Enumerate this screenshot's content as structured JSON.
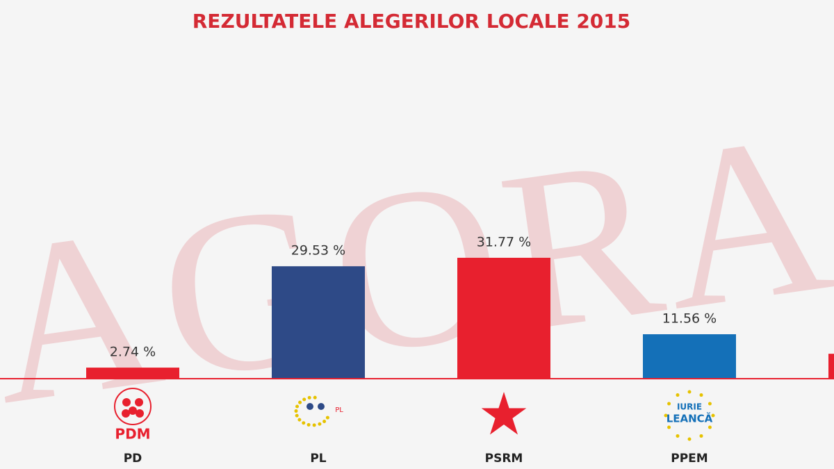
{
  "chart_data": {
    "type": "bar",
    "title": "REZULTATELE ALEGERILOR LOCALE 2015",
    "watermark": "AGORA",
    "categories": [
      "PD",
      "PL",
      "PSRM",
      "PPEM",
      null
    ],
    "values": [
      2.74,
      29.53,
      31.77,
      11.56,
      6.4
    ],
    "value_labels": [
      "2.74 %",
      "29.53 %",
      "31.77 %",
      "11.56 %",
      null
    ],
    "colors": [
      "#e8202e",
      "#2e4a87",
      "#e8202e",
      "#1470b8",
      "#e8202e"
    ],
    "logo_texts": [
      [
        "PDM"
      ],
      [
        "PL"
      ],
      [],
      [
        "IURIE",
        "LEANCĂ"
      ],
      []
    ]
  }
}
